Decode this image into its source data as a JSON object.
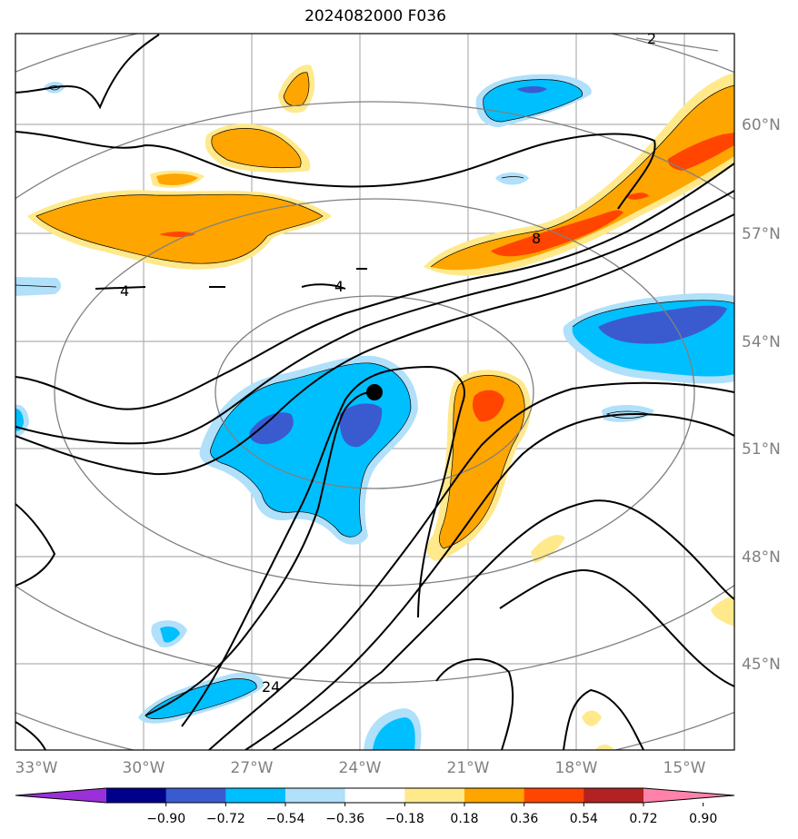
{
  "title": "2024082000 F036",
  "map": {
    "lon_labels": [
      "33°W",
      "30°W",
      "27°W",
      "24°W",
      "21°W",
      "18°W",
      "15°W"
    ],
    "lat_labels": [
      "60°N",
      "57°N",
      "54°N",
      "51°N",
      "48°N",
      "45°N"
    ],
    "contour_labels": [
      "2",
      "8",
      "4",
      "4",
      "24"
    ],
    "colorbar_labels": [
      "−0.90",
      "−0.72",
      "−0.54",
      "−0.36",
      "−0.18",
      "0.18",
      "0.36",
      "0.54",
      "0.72",
      "0.90"
    ],
    "colorbar_colors": [
      "#9b30d8",
      "#00008b",
      "#3a5bd0",
      "#00bfff",
      "#b0e0fa",
      "#ffffff",
      "#ffe98a",
      "#ffa500",
      "#ff4500",
      "#b22222",
      "#ff82ab"
    ],
    "colorbar_range": [
      -0.9,
      0.9
    ],
    "colorbar_extend": "both",
    "marker": {
      "lon": -23.7,
      "lat": 52.6
    }
  }
}
